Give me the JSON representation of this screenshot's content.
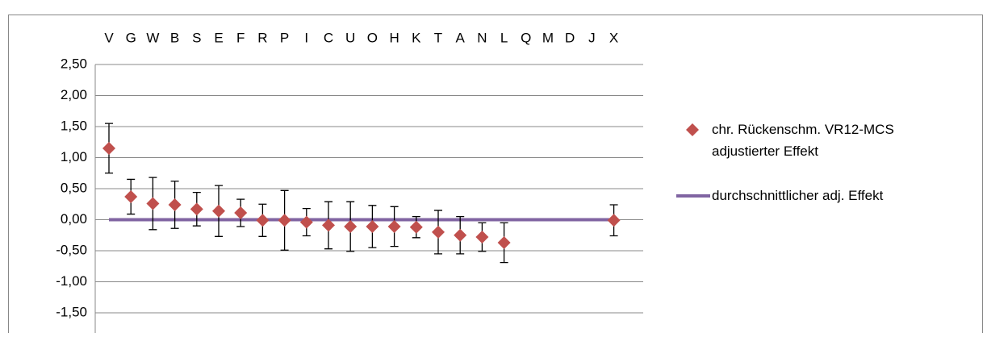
{
  "chart_data": {
    "type": "scatter",
    "categories": [
      "V",
      "G",
      "W",
      "B",
      "S",
      "E",
      "F",
      "R",
      "P",
      "I",
      "C",
      "U",
      "O",
      "H",
      "K",
      "T",
      "A",
      "N",
      "L",
      "Q",
      "M",
      "D",
      "J",
      "X"
    ],
    "series": [
      {
        "name": "chr. Rückenschm. VR12-MCS adjustierter Effekt",
        "color": "#c0504d",
        "kind": "marker",
        "values": [
          1.15,
          0.37,
          0.26,
          0.24,
          0.17,
          0.14,
          0.11,
          -0.01,
          -0.01,
          -0.04,
          -0.09,
          -0.11,
          -0.11,
          -0.11,
          -0.12,
          -0.2,
          -0.25,
          -0.28,
          -0.37,
          null,
          null,
          null,
          null,
          -0.01
        ],
        "errors": [
          0.4,
          0.28,
          0.42,
          0.38,
          0.27,
          0.41,
          0.22,
          0.26,
          0.48,
          0.22,
          0.38,
          0.4,
          0.34,
          0.32,
          0.17,
          0.35,
          0.3,
          0.23,
          0.32,
          null,
          null,
          null,
          null,
          0.25
        ]
      },
      {
        "name": "durchschnittlicher adj. Effekt",
        "color": "#8064a2",
        "kind": "line",
        "values": [
          0,
          0,
          0,
          0,
          0,
          0,
          0,
          0,
          0,
          0,
          0,
          0,
          0,
          0,
          0,
          0,
          0,
          0,
          0,
          0,
          0,
          0,
          0,
          0
        ]
      }
    ],
    "ylim": [
      -1.5,
      2.5
    ],
    "yticks": [
      {
        "value": -1.5,
        "label": "-1,50"
      },
      {
        "value": -1,
        "label": "-1,00"
      },
      {
        "value": -0.5,
        "label": "-0,50"
      },
      {
        "value": 0,
        "label": "0,00"
      },
      {
        "value": 0.5,
        "label": "0,50"
      },
      {
        "value": 1,
        "label": "1,00"
      },
      {
        "value": 1.5,
        "label": "1,50"
      },
      {
        "value": 2,
        "label": "2,00"
      },
      {
        "value": 2.5,
        "label": "2,50"
      }
    ],
    "grid": true
  }
}
